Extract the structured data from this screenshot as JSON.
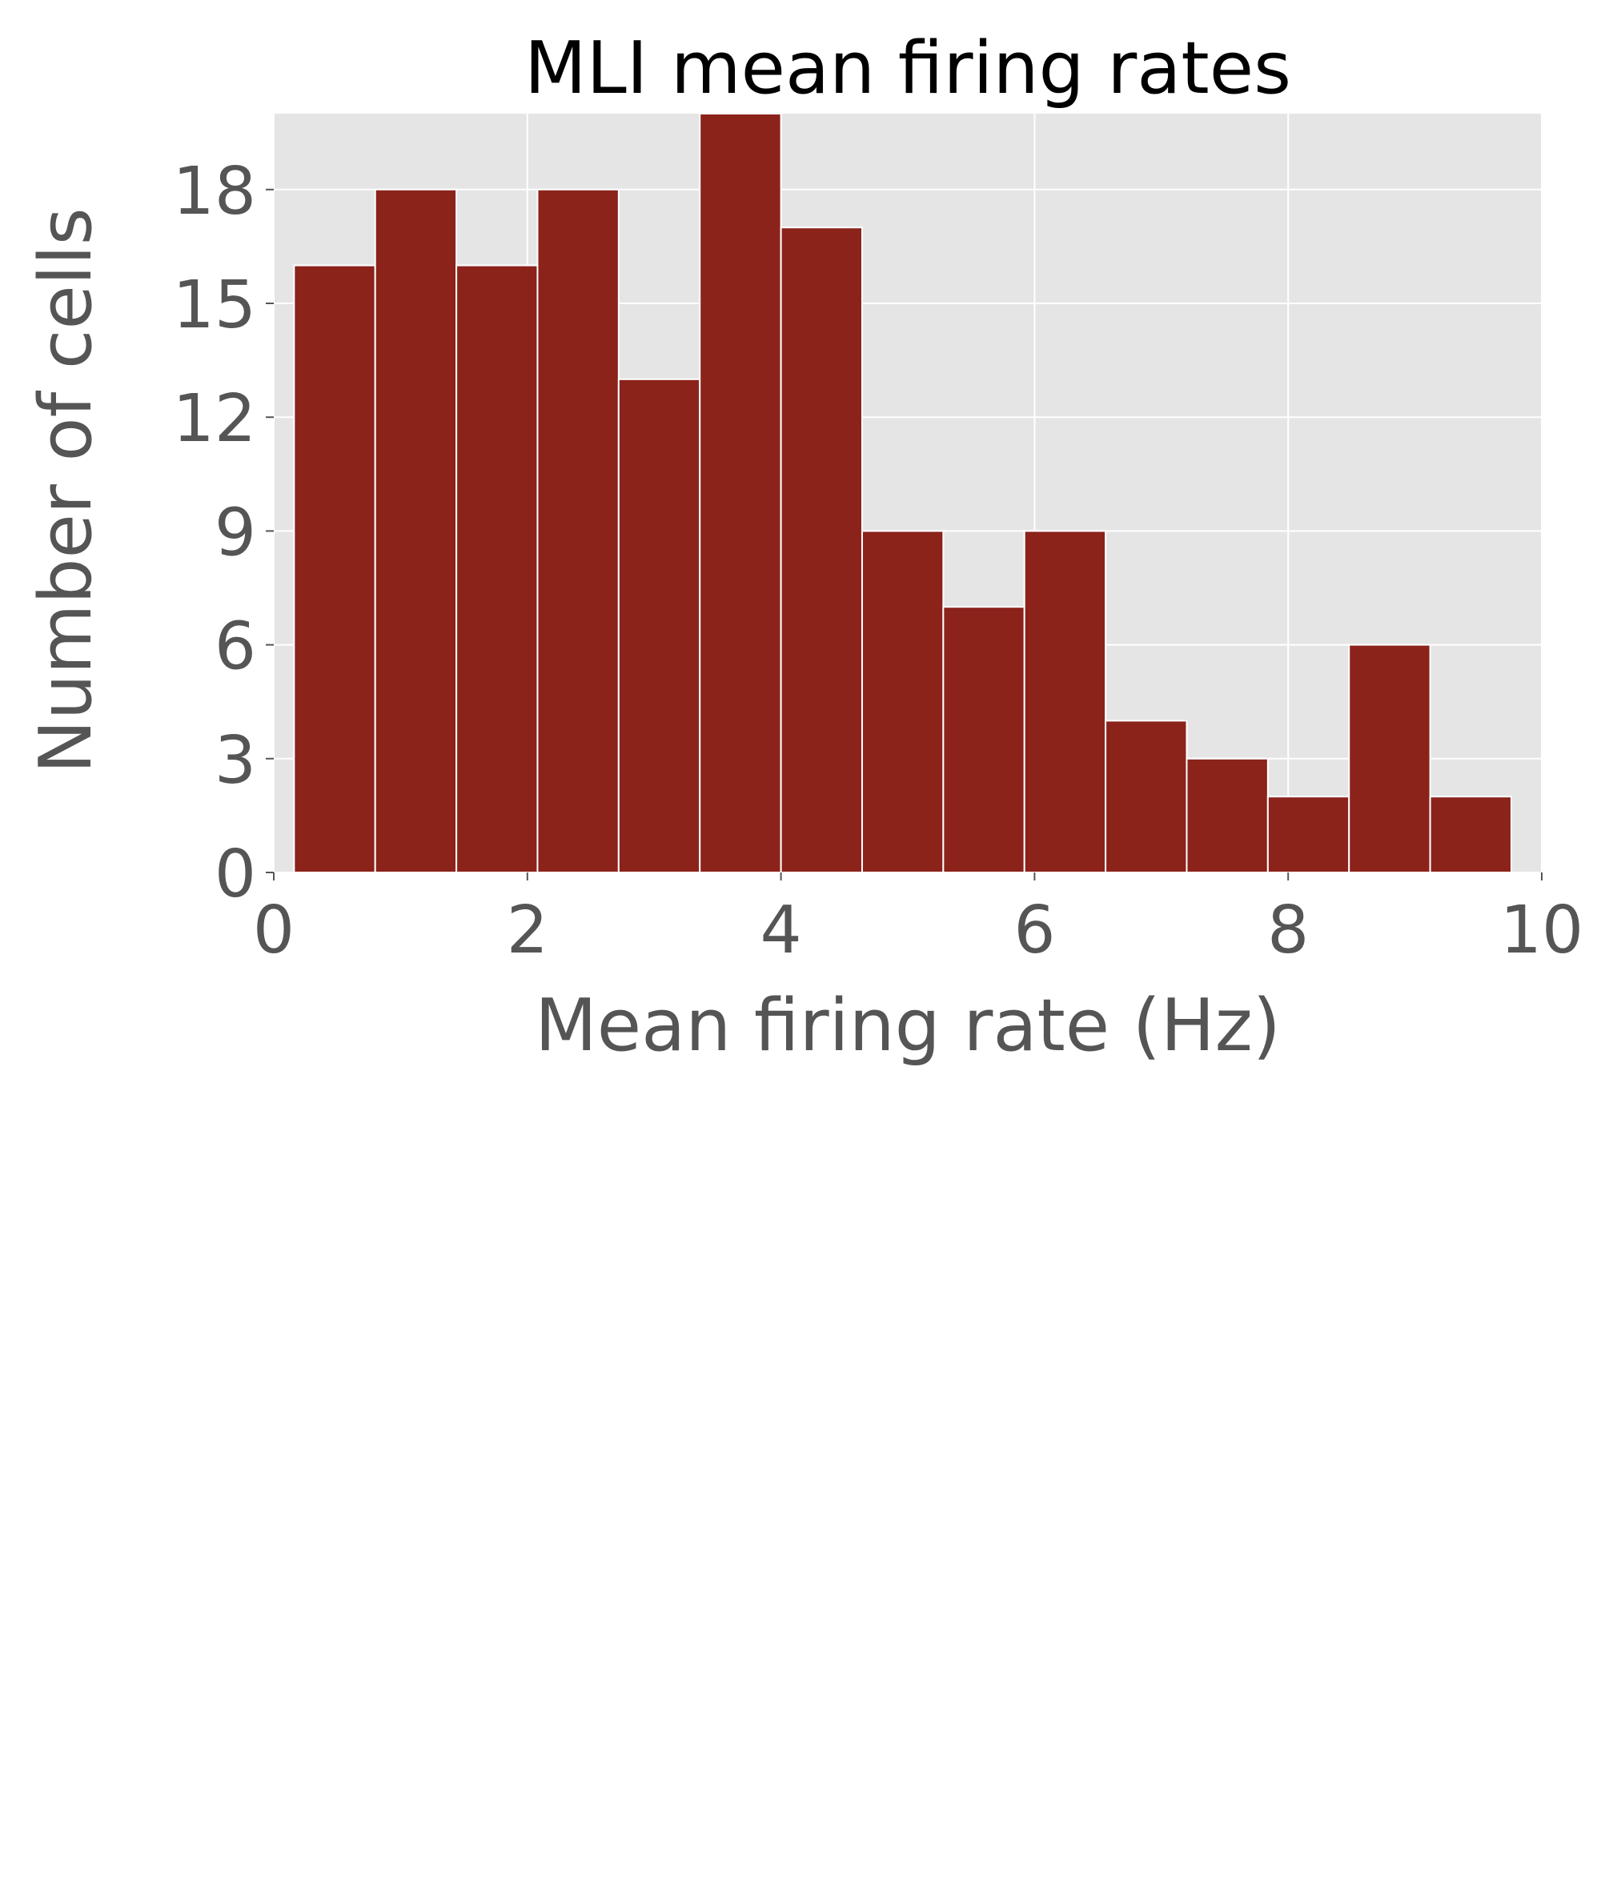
{
  "chart_data": {
    "type": "bar",
    "title": "MLI mean firing rates",
    "xlabel": "Mean firing rate (Hz)",
    "ylabel": "Number of cells",
    "xlim": [
      0,
      10
    ],
    "ylim": [
      0,
      20
    ],
    "xticks": [
      "0",
      "2",
      "4",
      "6",
      "8",
      "10"
    ],
    "yticks": [
      "0",
      "3",
      "6",
      "9",
      "12",
      "15",
      "18"
    ],
    "grid": true,
    "bins": [
      {
        "x0": 0.16,
        "x1": 0.8,
        "value": 16
      },
      {
        "x0": 0.8,
        "x1": 1.44,
        "value": 18
      },
      {
        "x0": 1.44,
        "x1": 2.08,
        "value": 16
      },
      {
        "x0": 2.08,
        "x1": 2.72,
        "value": 18
      },
      {
        "x0": 2.72,
        "x1": 3.36,
        "value": 13
      },
      {
        "x0": 3.36,
        "x1": 4.0,
        "value": 20
      },
      {
        "x0": 4.0,
        "x1": 4.64,
        "value": 17
      },
      {
        "x0": 4.64,
        "x1": 5.28,
        "value": 9
      },
      {
        "x0": 5.28,
        "x1": 5.92,
        "value": 7
      },
      {
        "x0": 5.92,
        "x1": 6.56,
        "value": 9
      },
      {
        "x0": 6.56,
        "x1": 7.2,
        "value": 4
      },
      {
        "x0": 7.2,
        "x1": 7.84,
        "value": 3
      },
      {
        "x0": 7.84,
        "x1": 8.48,
        "value": 2
      },
      {
        "x0": 8.48,
        "x1": 9.12,
        "value": 6
      },
      {
        "x0": 9.12,
        "x1": 9.76,
        "value": 2
      }
    ],
    "colors": {
      "bar": "#8b231b",
      "bar_edge": "#ffffff",
      "plot_background": "#e5e5e5",
      "grid": "#ffffff",
      "tick": "#555555"
    }
  }
}
